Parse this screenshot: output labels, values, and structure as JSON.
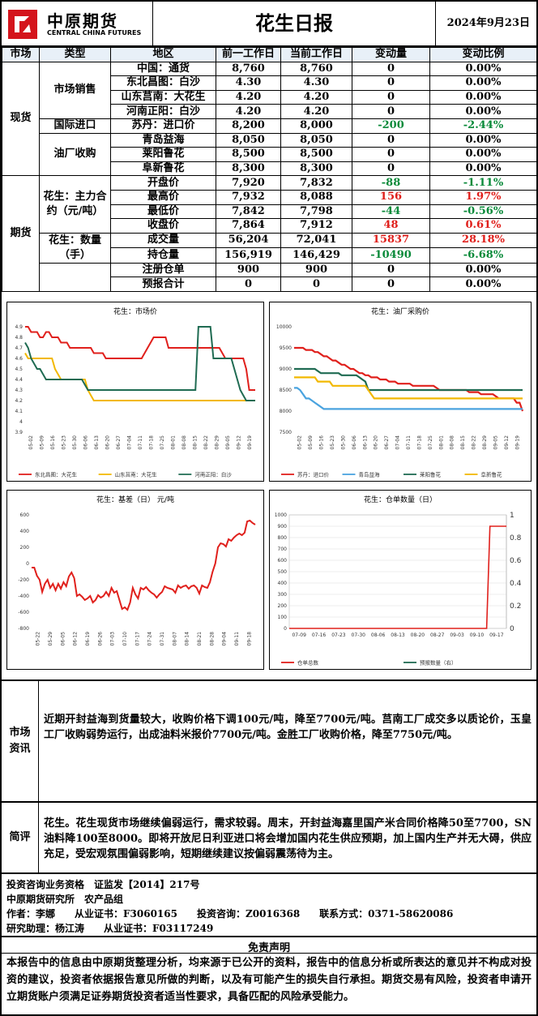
{
  "header": {
    "logo_cn": "中原期货",
    "logo_en": "CENTRAL CHINA FUTURES",
    "title": "花生日报",
    "date": "2024年9月23日"
  },
  "table": {
    "headers": [
      "市场",
      "类型",
      "地区",
      "前一工作日",
      "当前工作日",
      "变动量",
      "变动比例"
    ],
    "market_spot": "现货",
    "market_futures": "期货",
    "type_sales": "市场销售",
    "type_import": "国际进口",
    "type_mill": "油厂收购",
    "type_contract": "花生：主力合约（元/吨）",
    "type_volume": "花生：数量（手）",
    "rows": [
      {
        "region": "中国：通货",
        "prev": "8,760",
        "curr": "8,760",
        "chg": "0",
        "pct": "0.00%"
      },
      {
        "region": "东北昌图：白沙",
        "prev": "4.30",
        "curr": "4.30",
        "chg": "0",
        "pct": "0.00%"
      },
      {
        "region": "山东莒南：大花生",
        "prev": "4.20",
        "curr": "4.20",
        "chg": "0",
        "pct": "0.00%"
      },
      {
        "region": "河南正阳：白沙",
        "prev": "4.20",
        "curr": "4.20",
        "chg": "0",
        "pct": "0.00%"
      },
      {
        "region": "苏丹：进口价",
        "prev": "8,200",
        "curr": "8,000",
        "chg": "-200",
        "pct": "-2.44%"
      },
      {
        "region": "青岛益海",
        "prev": "8,050",
        "curr": "8,050",
        "chg": "0",
        "pct": "0.00%"
      },
      {
        "region": "莱阳鲁花",
        "prev": "8,500",
        "curr": "8,500",
        "chg": "0",
        "pct": "0.00%"
      },
      {
        "region": "阜新鲁花",
        "prev": "8,300",
        "curr": "8,300",
        "chg": "0",
        "pct": "0.00%"
      },
      {
        "region": "开盘价",
        "prev": "7,920",
        "curr": "7,832",
        "chg": "-88",
        "pct": "-1.11%"
      },
      {
        "region": "最高价",
        "prev": "7,932",
        "curr": "8,088",
        "chg": "156",
        "pct": "1.97%"
      },
      {
        "region": "最低价",
        "prev": "7,842",
        "curr": "7,798",
        "chg": "-44",
        "pct": "-0.56%"
      },
      {
        "region": "收盘价",
        "prev": "7,864",
        "curr": "7,912",
        "chg": "48",
        "pct": "0.61%"
      },
      {
        "region": "成交量",
        "prev": "56,204",
        "curr": "72,041",
        "chg": "15837",
        "pct": "28.18%"
      },
      {
        "region": "持仓量",
        "prev": "156,919",
        "curr": "146,429",
        "chg": "-10490",
        "pct": "-6.68%"
      },
      {
        "region": "注册仓单",
        "prev": "900",
        "curr": "900",
        "chg": "0",
        "pct": "0.00%"
      },
      {
        "region": "预报合计",
        "prev": "0",
        "curr": "0",
        "chg": "0",
        "pct": "0.00%"
      }
    ]
  },
  "colors": {
    "red": "#e0201c",
    "yellow": "#f2b800",
    "green": "#1f6b52",
    "blue": "#4aa3df",
    "negative": "#0a8a3a"
  },
  "chart_data": [
    {
      "type": "line",
      "title": "花生：市场价",
      "ylim": [
        3.9,
        4.9
      ],
      "yticks": [
        "4.9",
        "4.8",
        "4.7",
        "4.6",
        "4.5",
        "4.4",
        "4.3",
        "4.2",
        "4.1",
        "4",
        "3.9"
      ],
      "xticks": [
        "05-02",
        "05-09",
        "05-16",
        "05-23",
        "05-30",
        "06-06",
        "06-13",
        "06-20",
        "06-27",
        "07-04",
        "07-11",
        "07-18",
        "07-25",
        "08-01",
        "08-08",
        "08-15",
        "08-22",
        "08-29",
        "09-05",
        "09-12",
        "09-19"
      ],
      "series": [
        {
          "name": "东北昌图：大花生",
          "color": "#e0201c",
          "values": [
            4.9,
            4.9,
            4.85,
            4.85,
            4.85,
            4.8,
            4.8,
            4.85,
            4.85,
            4.8,
            4.8,
            4.8,
            4.75,
            4.75,
            4.75,
            4.7,
            4.7,
            4.7,
            4.7,
            4.7,
            4.7,
            4.7,
            4.7,
            4.65,
            4.65,
            4.65,
            4.65,
            4.6,
            4.6,
            4.6,
            4.6,
            4.6,
            4.6,
            4.6,
            4.6,
            4.6,
            4.6,
            4.6,
            4.6,
            4.6,
            4.65,
            4.7,
            4.75,
            4.8,
            4.8,
            4.8,
            4.8,
            4.8,
            4.7,
            4.7,
            4.7,
            4.7,
            4.7,
            4.7,
            4.7,
            4.7,
            4.7,
            4.7,
            4.7,
            4.7,
            4.7,
            4.7,
            4.7,
            4.7,
            4.7,
            4.7,
            4.65,
            4.6,
            4.6,
            4.6,
            4.6,
            4.6,
            4.6,
            4.6,
            4.5,
            4.3,
            4.3,
            4.3
          ]
        },
        {
          "name": "山东莒南：大花生",
          "color": "#f2b800",
          "values": [
            4.65,
            4.6,
            4.6,
            4.6,
            4.6,
            4.6,
            4.6,
            4.6,
            4.6,
            4.6,
            4.5,
            4.45,
            4.4,
            4.4,
            4.4,
            4.4,
            4.4,
            4.4,
            4.4,
            4.4,
            4.4,
            4.3,
            4.25,
            4.2,
            4.2,
            4.2,
            4.2,
            4.2,
            4.2,
            4.2,
            4.2,
            4.2,
            4.2,
            4.2,
            4.2,
            4.2,
            4.2,
            4.2,
            4.2,
            4.2,
            4.2,
            4.2,
            4.2,
            4.2,
            4.2,
            4.2,
            4.2,
            4.2,
            4.2,
            4.2,
            4.2,
            4.2,
            4.2,
            4.2,
            4.2,
            4.2,
            4.2,
            4.2,
            4.2,
            4.2,
            4.2,
            4.2,
            4.2,
            4.2,
            4.2,
            4.2,
            4.2,
            4.2,
            4.2,
            4.2,
            4.2,
            4.2,
            4.2,
            4.2,
            4.2,
            4.2,
            4.2,
            4.2
          ]
        },
        {
          "name": "河南正阳：白沙",
          "color": "#1f6b52",
          "values": [
            4.75,
            4.7,
            4.6,
            4.55,
            4.5,
            4.5,
            4.45,
            4.4,
            4.4,
            4.4,
            4.4,
            4.4,
            4.4,
            4.4,
            4.4,
            4.4,
            4.4,
            4.4,
            4.4,
            4.4,
            4.35,
            4.3,
            4.3,
            4.3,
            4.3,
            4.3,
            4.3,
            4.3,
            4.3,
            4.3,
            4.3,
            4.3,
            4.3,
            4.3,
            4.3,
            4.3,
            4.3,
            4.3,
            4.3,
            4.3,
            4.3,
            4.3,
            4.3,
            4.3,
            4.3,
            4.3,
            4.3,
            4.3,
            4.3,
            4.3,
            4.3,
            4.3,
            4.3,
            4.3,
            4.3,
            4.3,
            4.3,
            4.3,
            4.9,
            4.9,
            4.9,
            4.9,
            4.9,
            4.6,
            4.6,
            4.6,
            4.6,
            4.6,
            4.6,
            4.6,
            4.5,
            4.4,
            4.3,
            4.25,
            4.2,
            4.2,
            4.2,
            4.2
          ]
        }
      ]
    },
    {
      "type": "line",
      "title": "花生：油厂采购价",
      "ylim": [
        7500,
        10000
      ],
      "yticks": [
        "10000",
        "9500",
        "9000",
        "8500",
        "8000",
        "7500"
      ],
      "xticks": [
        "05-02",
        "05-09",
        "05-16",
        "05-23",
        "05-30",
        "06-06",
        "06-13",
        "06-20",
        "06-27",
        "07-04",
        "07-11",
        "07-18",
        "07-25",
        "08-01",
        "08-08",
        "08-15",
        "08-22",
        "08-29",
        "09-05",
        "09-12",
        "09-19"
      ],
      "series": [
        {
          "name": "苏丹：进口价",
          "color": "#e0201c",
          "values": [
            9500,
            9500,
            9500,
            9500,
            9450,
            9450,
            9450,
            9400,
            9400,
            9350,
            9300,
            9300,
            9250,
            9200,
            9200,
            9150,
            9100,
            9100,
            9050,
            9000,
            9000,
            8950,
            8900,
            8900,
            8850,
            8850,
            8800,
            8800,
            8800,
            8750,
            8750,
            8750,
            8700,
            8700,
            8700,
            8650,
            8650,
            8650,
            8650,
            8650,
            8600,
            8600,
            8600,
            8600,
            8600,
            8600,
            8600,
            8600,
            8550,
            8500,
            8500,
            8500,
            8500,
            8500,
            8500,
            8500,
            8500,
            8500,
            8500,
            8450,
            8450,
            8450,
            8450,
            8400,
            8400,
            8400,
            8400,
            8400,
            8350,
            8300,
            8300,
            8300,
            8300,
            8300,
            8300,
            8200,
            8200,
            8000
          ]
        },
        {
          "name": "青岛益海",
          "color": "#4aa3df",
          "values": [
            8550,
            8550,
            8500,
            8400,
            8300,
            8300,
            8250,
            8200,
            8150,
            8100,
            8050,
            8050,
            8050,
            8050,
            8050,
            8050,
            8050,
            8050,
            8050,
            8050,
            8050,
            8050,
            8050,
            8050,
            8050,
            8050,
            8050,
            8050,
            8050,
            8050,
            8050,
            8050,
            8050,
            8050,
            8050,
            8050,
            8050,
            8050,
            8050,
            8050,
            8050,
            8050,
            8050,
            8050,
            8050,
            8050,
            8050,
            8050,
            8050,
            8050,
            8050,
            8050,
            8050,
            8050,
            8050,
            8050,
            8050,
            8050,
            8050,
            8050,
            8050,
            8050,
            8050,
            8050,
            8050,
            8050,
            8050,
            8050,
            8050,
            8050,
            8050,
            8050,
            8050,
            8050,
            8050,
            8050,
            8050,
            8050
          ]
        },
        {
          "name": "莱阳鲁花",
          "color": "#1f6b52",
          "values": [
            9000,
            9000,
            9000,
            9000,
            9000,
            9000,
            9000,
            9000,
            8950,
            8900,
            8900,
            8900,
            8900,
            8900,
            8900,
            8900,
            8850,
            8850,
            8850,
            8850,
            8850,
            8850,
            8800,
            8750,
            8700,
            8500,
            8500,
            8500,
            8500,
            8500,
            8500,
            8500,
            8500,
            8500,
            8500,
            8500,
            8500,
            8500,
            8500,
            8500,
            8500,
            8500,
            8500,
            8500,
            8500,
            8500,
            8500,
            8500,
            8500,
            8500,
            8500,
            8500,
            8500,
            8500,
            8500,
            8500,
            8500,
            8500,
            8500,
            8500,
            8500,
            8500,
            8500,
            8500,
            8500,
            8500,
            8500,
            8500,
            8500,
            8500,
            8500,
            8500,
            8500,
            8500,
            8500,
            8500,
            8500,
            8500
          ]
        },
        {
          "name": "阜新鲁花",
          "color": "#f2b800",
          "values": [
            8800,
            8800,
            8800,
            8800,
            8800,
            8800,
            8800,
            8800,
            8700,
            8700,
            8700,
            8700,
            8700,
            8600,
            8600,
            8600,
            8600,
            8600,
            8600,
            8600,
            8600,
            8600,
            8600,
            8600,
            8600,
            8500,
            8400,
            8300,
            8300,
            8300,
            8300,
            8300,
            8300,
            8300,
            8300,
            8300,
            8300,
            8300,
            8300,
            8300,
            8300,
            8300,
            8300,
            8300,
            8300,
            8300,
            8300,
            8300,
            8300,
            8300,
            8300,
            8300,
            8300,
            8300,
            8300,
            8300,
            8300,
            8300,
            8300,
            8300,
            8300,
            8300,
            8300,
            8300,
            8300,
            8300,
            8300,
            8300,
            8300,
            8300,
            8300,
            8300,
            8300,
            8300,
            8300,
            8300,
            8300,
            8300
          ]
        }
      ]
    },
    {
      "type": "line",
      "title": "花生：基差（日） 元/吨",
      "ylim": [
        -800,
        600
      ],
      "yticks": [
        "600",
        "400",
        "200",
        "0",
        "-200",
        "-400",
        "-600",
        "-800"
      ],
      "xticks": [
        "05-22",
        "05-29",
        "06-05",
        "06-12",
        "06-19",
        "06-26",
        "07-03",
        "07-10",
        "07-17",
        "07-24",
        "07-31",
        "08-07",
        "08-14",
        "08-21",
        "08-28",
        "09-04",
        "09-11",
        "09-18"
      ],
      "series": [
        {
          "name": "基差",
          "color": "#e0201c",
          "values": [
            -50,
            -50,
            -150,
            -200,
            -350,
            -250,
            -200,
            -300,
            -250,
            -330,
            -250,
            -310,
            -230,
            -280,
            -160,
            -110,
            -180,
            -400,
            -380,
            -410,
            -450,
            -430,
            -400,
            -480,
            -450,
            -390,
            -420,
            -400,
            -350,
            -400,
            -300,
            -360,
            -340,
            -450,
            -560,
            -540,
            -570,
            -480,
            -300,
            -380,
            -430,
            -300,
            -320,
            -290,
            -330,
            -360,
            -380,
            -420,
            -380,
            -350,
            -280,
            -300,
            -310,
            -320,
            -360,
            -270,
            -300,
            -280,
            -270,
            -310,
            -280,
            -270,
            -300,
            -370,
            -270,
            -290,
            -300,
            -230,
            -100,
            0,
            200,
            250,
            240,
            210,
            300,
            280,
            320,
            350,
            370,
            350,
            380,
            520,
            530,
            500,
            480
          ]
        }
      ]
    },
    {
      "type": "line",
      "title": "花生：仓单数量（日）",
      "ylim": [
        0,
        1000
      ],
      "yticks": [
        "1000",
        "900",
        "800",
        "700",
        "600",
        "500",
        "400",
        "300",
        "200",
        "100",
        "0"
      ],
      "y2ticks": [
        "1",
        "0.8",
        "0.6",
        "0.4",
        "0.2",
        "0"
      ],
      "xticks": [
        "07-09",
        "07-16",
        "07-23",
        "07-30",
        "08-06",
        "08-13",
        "08-20",
        "08-27",
        "09-03",
        "09-10",
        "09-17"
      ],
      "series": [
        {
          "name": "仓单总数",
          "color": "#e0201c",
          "values": [
            0,
            0,
            0,
            0,
            0,
            0,
            0,
            0,
            0,
            0,
            0,
            0,
            0,
            0,
            0,
            0,
            0,
            0,
            0,
            0,
            0,
            0,
            0,
            0,
            0,
            0,
            0,
            0,
            0,
            0,
            0,
            0,
            0,
            0,
            0,
            0,
            0,
            0,
            0,
            0,
            0,
            0,
            0,
            0,
            0,
            0,
            0,
            0,
            0,
            0,
            0,
            0,
            0,
            0,
            0,
            0,
            0,
            0,
            0,
            0,
            0,
            900,
            900,
            900,
            900,
            900,
            900
          ]
        },
        {
          "name": "预报数量（右）",
          "color": "#1f6b52",
          "values": []
        }
      ]
    }
  ],
  "sections": {
    "market_label": "市场资讯",
    "market_text": "近期开封益海到货量较大，收购价格下调100元/吨，降至7700元/吨。莒南工厂成交多以质论价，玉皇工厂收购弱势运行，出成油料米报价7700元/吨。金胜工厂收购价格，降至7750元/吨。",
    "review_label": "简评",
    "review_text": "花生。花生现货市场继续偏弱运行，需求较弱。周末，开封益海嘉里国产米合同价格降50至7700，SN油料降100至8000。即将开放尼日利亚进口将会增加国内花生供应预期，加上国内生产并无大碍，供应充足，受宏观氛围偏弱影响，短期继续建议按偏弱震荡待为主。"
  },
  "info": {
    "line1": "投资咨询业务资格　证监发【2014】217号",
    "line2": "中原期货研究所　农产品组",
    "line3": "作者：李娜　　从业证书：F3060165　　投资咨询：Z0016368　　联系方式：0371-58620086",
    "line4": "研究助理：杨江涛　　从业证书：F03117249"
  },
  "disclaimer": {
    "title": "免责声明",
    "text": "本报告中的信息由中原期货整理分析，均来源于已公开的资料，报告中的信息分析或所表达的意见并不构成对投资的建议，投资者依据报告意见所做的判断，以及有可能产生的损失自行承担。期货交易有风险，投资者申请开立期货账户须满足证券期货投资者适当性要求，具备匹配的风险承受能力。"
  }
}
